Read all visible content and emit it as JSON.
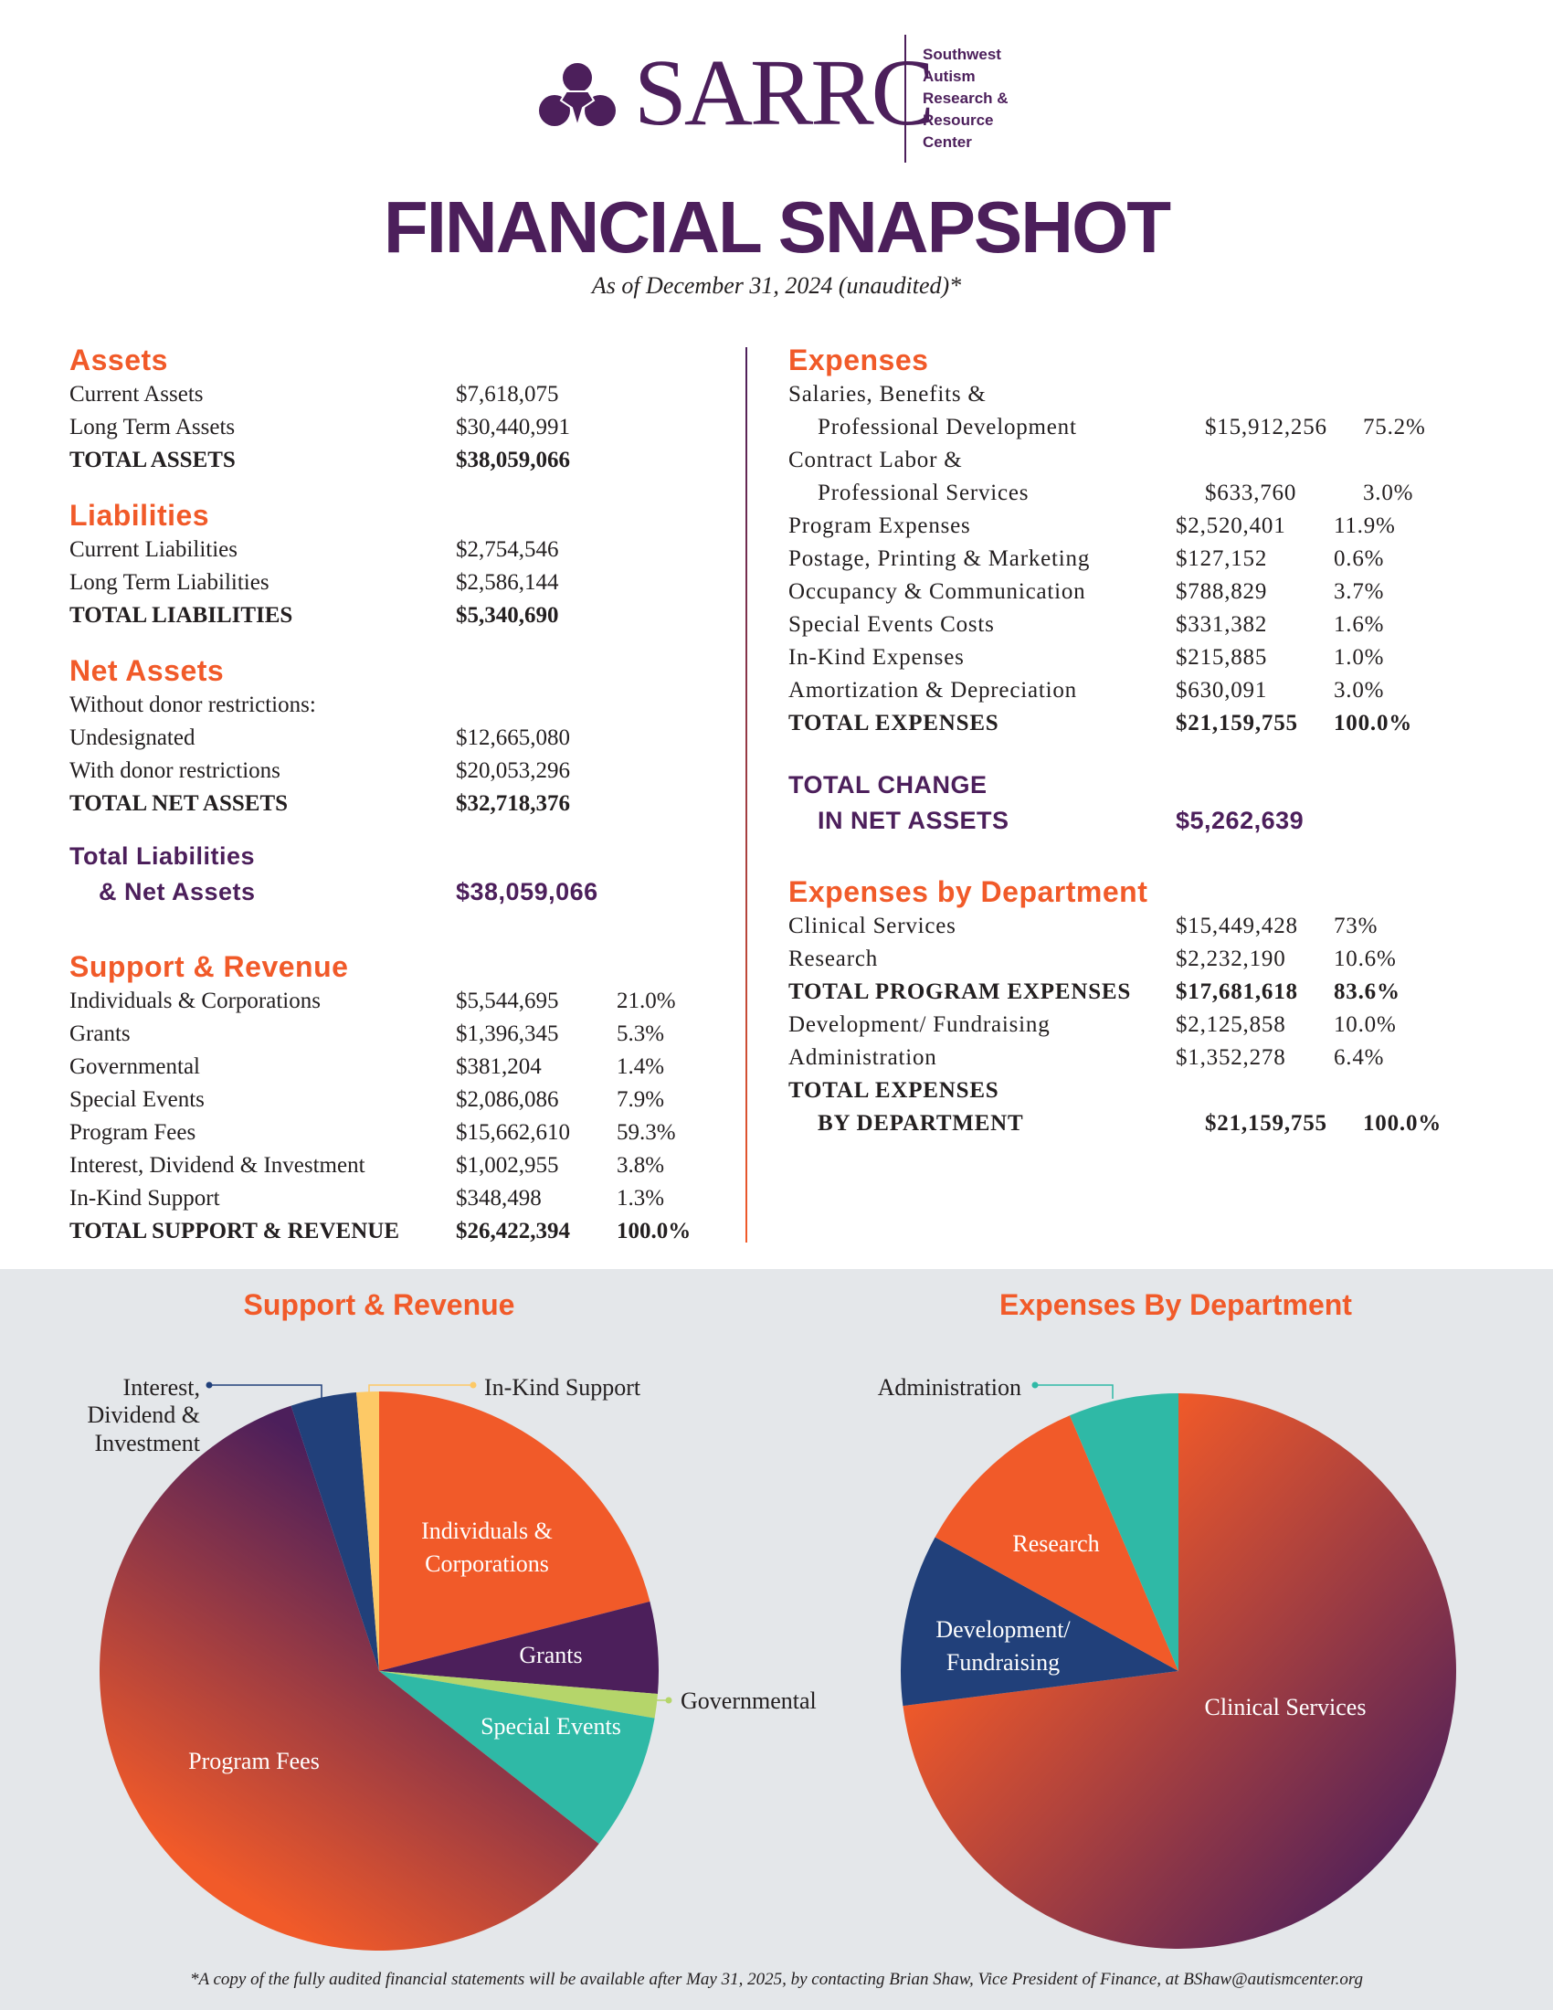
{
  "header": {
    "logo_text": "SARRC",
    "logo_subtext": [
      "Southwest",
      "Autism",
      "Research &",
      "Resource",
      "Center"
    ],
    "title": "FINANCIAL SNAPSHOT",
    "subtitle": "As of December 31, 2024 (unaudited)*"
  },
  "colors": {
    "purple": "#4c1f5b",
    "orange": "#f15a29",
    "teal": "#2fb9a6",
    "navy": "#21407a",
    "green": "#b5d56a",
    "yellow": "#fdc966",
    "band": "#e4e7ea"
  },
  "left": [
    {
      "heading": "Assets",
      "rows": [
        {
          "label": "Current Assets",
          "value": "$7,618,075"
        },
        {
          "label": "Long Term Assets",
          "value": "$30,440,991"
        },
        {
          "label": "TOTAL ASSETS",
          "value": "$38,059,066",
          "bold": true
        }
      ]
    },
    {
      "heading": "Liabilities",
      "rows": [
        {
          "label": "Current Liabilities",
          "value": "$2,754,546"
        },
        {
          "label": "Long Term Liabilities",
          "value": " $2,586,144"
        },
        {
          "label": "TOTAL LIABILITIES",
          "value": " $5,340,690",
          "bold": true
        }
      ]
    },
    {
      "heading": "Net Assets",
      "rows": [
        {
          "label": "Without donor restrictions:",
          "value": ""
        },
        {
          "label": "Undesignated",
          "value": "$12,665,080"
        },
        {
          "label": "With donor restrictions",
          "value": "$20,053,296"
        },
        {
          "label": "TOTAL NET ASSETS",
          "value": "$32,718,376",
          "bold": true
        }
      ]
    }
  ],
  "total_liabilities_net": {
    "line1": "Total Liabilities",
    "line2": "& Net Assets",
    "value": "$38,059,066"
  },
  "support_revenue": {
    "heading": "Support & Revenue",
    "rows": [
      {
        "label": "Individuals & Corporations",
        "value": "$5,544,695",
        "pct": "21.0%"
      },
      {
        "label": "Grants",
        "value": " $1,396,345",
        "pct": "5.3%"
      },
      {
        "label": "Governmental",
        "value": "$381,204",
        "pct": "1.4%"
      },
      {
        "label": "Special Events",
        "value": "$2,086,086",
        "pct": "7.9%"
      },
      {
        "label": "Program Fees",
        "value": "$15,662,610",
        "pct": "59.3%"
      },
      {
        "label": "Interest, Dividend & Investment",
        "value": "$1,002,955",
        "pct": "3.8%"
      },
      {
        "label": "In-Kind Support",
        "value": "$348,498",
        "pct": "1.3%"
      },
      {
        "label": "TOTAL SUPPORT & REVENUE",
        "value": "$26,422,394",
        "pct": "100.0%",
        "bold": true
      }
    ]
  },
  "expenses": {
    "heading": "Expenses",
    "rows": [
      {
        "label": "Salaries, Benefits &",
        "value": "",
        "pct": ""
      },
      {
        "label": "Professional Development",
        "value": "$15,912,256",
        "pct": "75.2%",
        "indent": true
      },
      {
        "label": "Contract Labor &",
        "value": "",
        "pct": ""
      },
      {
        "label": "Professional Services",
        "value": "$633,760",
        "pct": "3.0%",
        "indent": true
      },
      {
        "label": "Program Expenses",
        "value": "$2,520,401",
        "pct": "11.9%"
      },
      {
        "label": "Postage, Printing & Marketing",
        "value": "$127,152",
        "pct": "0.6%"
      },
      {
        "label": "Occupancy & Communication",
        "value": "$788,829",
        "pct": "3.7%"
      },
      {
        "label": "Special Events Costs",
        "value": "$331,382",
        "pct": "1.6%"
      },
      {
        "label": "In-Kind Expenses",
        "value": "$215,885",
        "pct": "1.0%"
      },
      {
        "label": "Amortization & Depreciation",
        "value": "$630,091",
        "pct": "3.0%"
      },
      {
        "label": "TOTAL EXPENSES",
        "value": "$21,159,755",
        "pct": "100.0%",
        "bold": true
      }
    ]
  },
  "total_change": {
    "line1": "TOTAL CHANGE",
    "line2": "IN NET ASSETS",
    "value": "$5,262,639"
  },
  "expenses_dept": {
    "heading": "Expenses by Department",
    "rows": [
      {
        "label": "Clinical Services",
        "value": "$15,449,428",
        "pct": "73%"
      },
      {
        "label": "Research",
        "value": "$2,232,190",
        "pct": "10.6%"
      },
      {
        "label": "TOTAL PROGRAM EXPENSES",
        "value": "$17,681,618",
        "pct": "83.6%",
        "bold": true
      },
      {
        "label": "Development/ Fundraising",
        "value": "$2,125,858",
        "pct": "10.0%"
      },
      {
        "label": "Administration",
        "value": "$1,352,278",
        "pct": "6.4%"
      },
      {
        "label": "TOTAL EXPENSES",
        "value": "",
        "pct": "",
        "bold": true
      },
      {
        "label": "BY DEPARTMENT",
        "value": "$21,159,755",
        "pct": "100.0%",
        "bold": true,
        "indent": true
      }
    ]
  },
  "chart_data": [
    {
      "type": "pie",
      "title": "Support & Revenue",
      "categories": [
        "Individuals & Corporations",
        "Grants",
        "Governmental",
        "Special Events",
        "Program Fees",
        "Interest, Dividend & Investment",
        "In-Kind Support"
      ],
      "values": [
        21.0,
        5.3,
        1.4,
        7.9,
        59.3,
        3.8,
        1.3
      ],
      "colors": [
        "#f15a29",
        "#4c1f5b",
        "#b5d56a",
        "#2fb9a6",
        "gradient",
        "#21407a",
        "#fdc966"
      ],
      "labels": {
        "interest": [
          "Interest,",
          "Dividend &",
          "Investment"
        ],
        "inkind": "In-Kind Support",
        "individuals": [
          "Individuals &",
          "Corporations"
        ],
        "grants": "Grants",
        "governmental": "Governmental",
        "special": "Special Events",
        "program": "Program Fees"
      }
    },
    {
      "type": "pie",
      "title": "Expenses By Department",
      "categories": [
        "Clinical Services",
        "Development/ Fundraising",
        "Research",
        "Administration"
      ],
      "values": [
        73.0,
        10.0,
        10.6,
        6.4
      ],
      "colors": [
        "gradient",
        "#21407a",
        "#f15a29",
        "#2fb9a6"
      ],
      "labels": {
        "admin": "Administration",
        "research": "Research",
        "development": [
          "Development/",
          "Fundraising"
        ],
        "clinical": "Clinical Services"
      }
    }
  ],
  "footer": "*A copy of the fully audited financial statements will be available after May 31, 2025, by contacting Brian Shaw, Vice President of Finance, at BShaw@autismcenter.org"
}
